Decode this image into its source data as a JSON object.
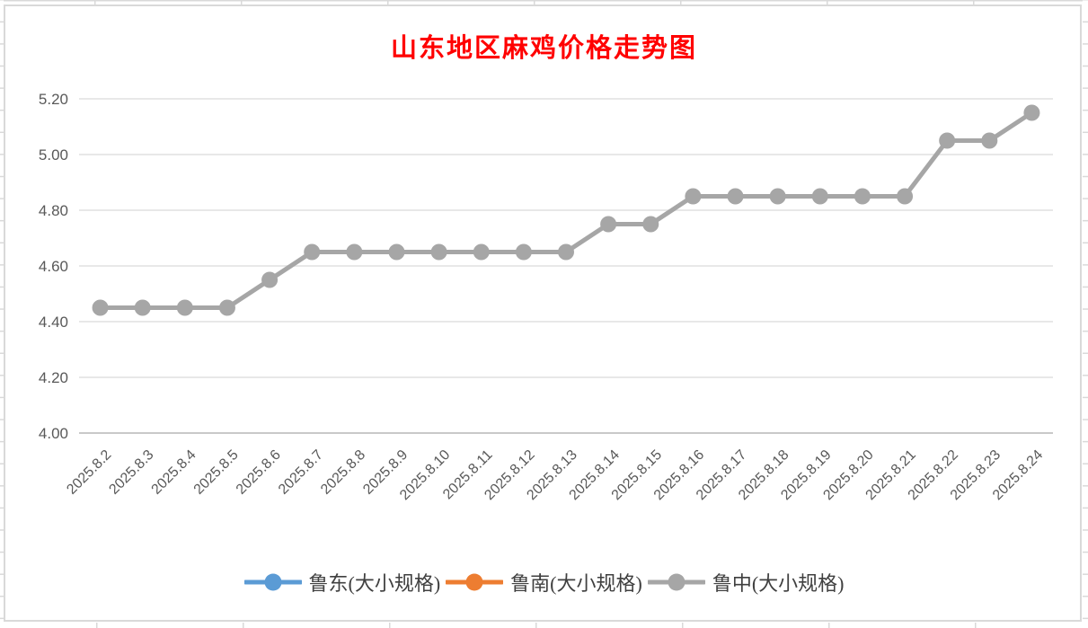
{
  "chart_data": {
    "type": "line",
    "title": "山东地区麻鸡价格走势图",
    "title_color": "#FF0000",
    "categories": [
      "2025.8.2",
      "2025.8.3",
      "2025.8.4",
      "2025.8.5",
      "2025.8.6",
      "2025.8.7",
      "2025.8.8",
      "2025.8.9",
      "2025.8.10",
      "2025.8.11",
      "2025.8.12",
      "2025.8.13",
      "2025.8.14",
      "2025.8.15",
      "2025.8.16",
      "2025.8.17",
      "2025.8.18",
      "2025.8.19",
      "2025.8.20",
      "2025.8.21",
      "2025.8.22",
      "2025.8.23",
      "2025.8.24"
    ],
    "series": [
      {
        "name": "鲁东(大小规格)",
        "color": "#5B9BD5",
        "values": [],
        "note": "legend entry only — line not visible in plot (covered by 鲁中 series)"
      },
      {
        "name": "鲁南(大小规格)",
        "color": "#ED7D31",
        "values": [],
        "note": "legend entry only — line not visible in plot (covered by 鲁中 series)"
      },
      {
        "name": "鲁中(大小规格)",
        "color": "#A6A6A6",
        "values": [
          4.45,
          4.45,
          4.45,
          4.45,
          4.55,
          4.65,
          4.65,
          4.65,
          4.65,
          4.65,
          4.65,
          4.65,
          4.75,
          4.75,
          4.85,
          4.85,
          4.85,
          4.85,
          4.85,
          4.85,
          5.05,
          5.05,
          5.15
        ]
      }
    ],
    "ylim": [
      4.0,
      5.2
    ],
    "ytick_step": 0.2,
    "yticks": [
      "5.20",
      "5.00",
      "4.80",
      "4.60",
      "4.40",
      "4.20",
      "4.00"
    ],
    "xlabel": "",
    "ylabel": "",
    "grid": true,
    "legend_position": "bottom",
    "axis_text_color": "#595959",
    "gridline_color": "#E8E8E8",
    "axis_line_color": "#C9C9C9",
    "background_color": "#FFFFFF"
  }
}
